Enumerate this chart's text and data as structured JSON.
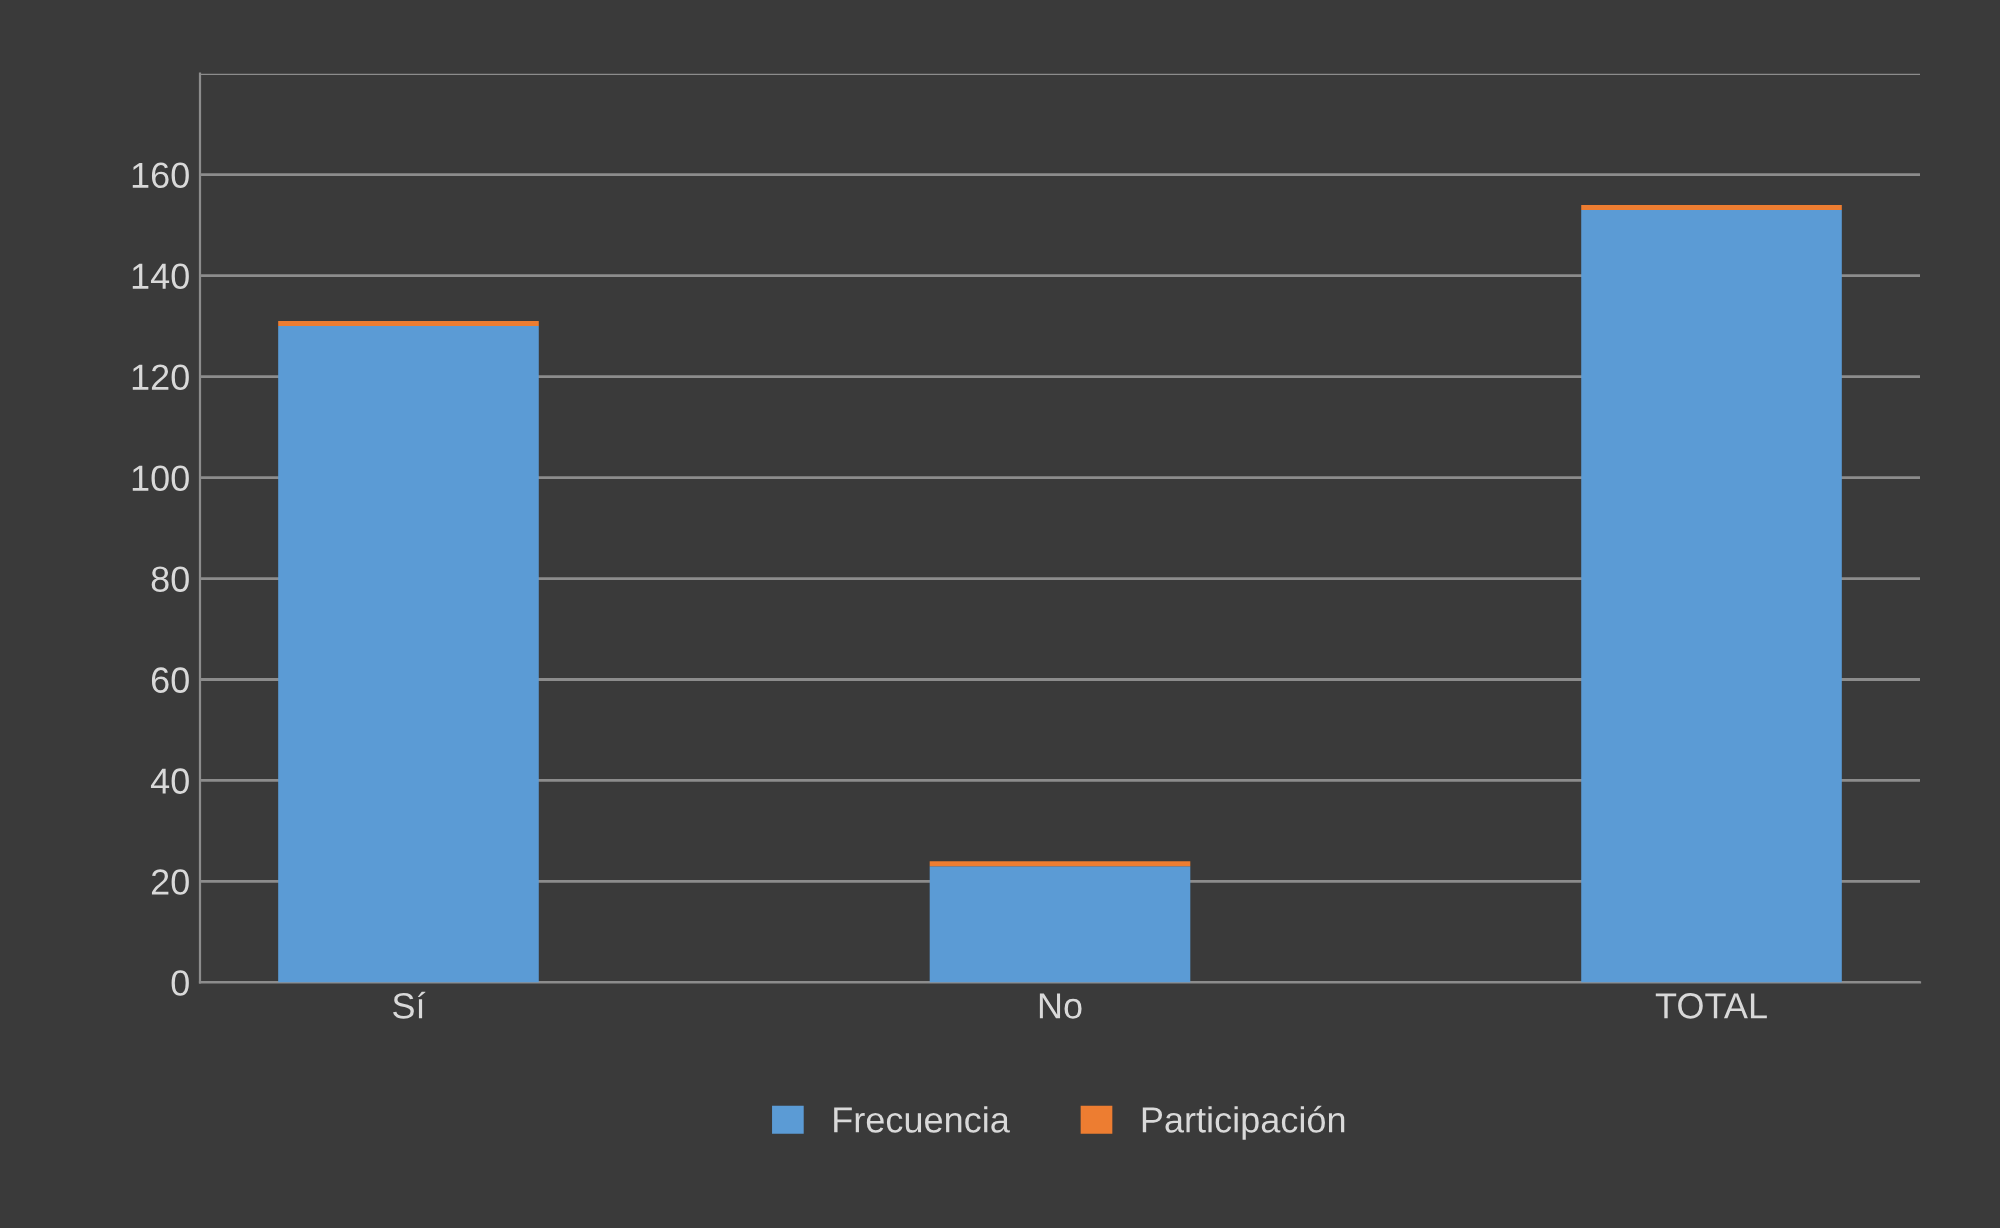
{
  "chart_data": {
    "type": "bar",
    "stacked": true,
    "categories": [
      "Sí",
      "No",
      "TOTAL"
    ],
    "series": [
      {
        "name": "Frecuencia",
        "color": "#5b9bd5",
        "values": [
          130,
          23,
          153
        ]
      },
      {
        "name": "Participación",
        "color": "#ed7d31",
        "values": [
          1,
          1,
          1
        ]
      }
    ],
    "ylim": [
      0,
      180
    ],
    "yticks": [
      0,
      20,
      40,
      60,
      80,
      100,
      120,
      140,
      160,
      {
        "value": 180,
        "label": null
      }
    ],
    "grid": "y",
    "legend": "bottom"
  }
}
